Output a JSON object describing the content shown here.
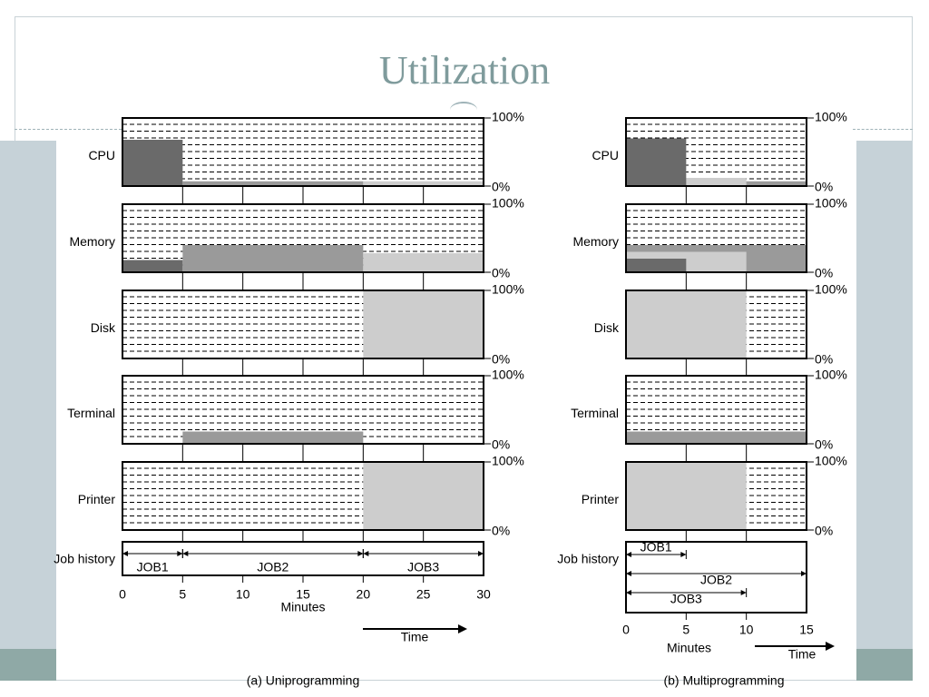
{
  "slide": {
    "title": "Utilization",
    "colors": {
      "title": "#7f9b9c",
      "accent_bar": "#c6d2d8",
      "accent_foot": "#8fa9a6"
    }
  },
  "chart_data": [
    {
      "type": "area",
      "caption": "(a) Uniprogramming",
      "x_label": "Minutes",
      "time_label": "Time",
      "x_ticks": [
        0,
        5,
        10,
        15,
        20,
        25,
        30
      ],
      "xlim": [
        0,
        30
      ],
      "ylim_percent": [
        0,
        100
      ],
      "y_tick_labels": [
        "100%",
        "0%"
      ],
      "grid": "dashed horizontal",
      "resources": [
        {
          "name": "CPU",
          "segments": [
            {
              "job": "JOB1",
              "start": 0,
              "end": 5,
              "level": 68
            },
            {
              "job": "JOB2",
              "start": 5,
              "end": 20,
              "level": 7
            },
            {
              "job": "JOB3",
              "start": 20,
              "end": 30,
              "level": 7
            }
          ]
        },
        {
          "name": "Memory",
          "segments": [
            {
              "job": "JOB1",
              "start": 0,
              "end": 5,
              "level": 18
            },
            {
              "job": "JOB2",
              "start": 5,
              "end": 20,
              "level": 40
            },
            {
              "job": "JOB3",
              "start": 20,
              "end": 30,
              "level": 28
            }
          ]
        },
        {
          "name": "Disk",
          "segments": [
            {
              "job": "JOB3",
              "start": 20,
              "end": 30,
              "level": 100
            }
          ]
        },
        {
          "name": "Terminal",
          "segments": [
            {
              "job": "JOB2",
              "start": 5,
              "end": 20,
              "level": 18
            }
          ]
        },
        {
          "name": "Printer",
          "segments": [
            {
              "job": "JOB3",
              "start": 20,
              "end": 30,
              "level": 100
            }
          ]
        }
      ],
      "job_history_label": "Job history",
      "job_history": [
        {
          "job": "JOB1",
          "start": 0,
          "end": 5
        },
        {
          "job": "JOB2",
          "start": 5,
          "end": 20
        },
        {
          "job": "JOB3",
          "start": 20,
          "end": 30
        }
      ]
    },
    {
      "type": "area",
      "caption": "(b) Multiprogramming",
      "x_label": "Minutes",
      "time_label": "Time",
      "x_ticks": [
        0,
        5,
        10,
        15
      ],
      "xlim": [
        0,
        15
      ],
      "ylim_percent": [
        0,
        100
      ],
      "y_tick_labels": [
        "100%",
        "0%"
      ],
      "grid": "dashed horizontal",
      "resources": [
        {
          "name": "CPU",
          "segments": [
            {
              "job": "JOB2",
              "start": 0,
              "end": 15,
              "level": 7
            },
            {
              "job": "JOB3",
              "start": 0,
              "end": 10,
              "level": 12
            },
            {
              "job": "JOB1",
              "start": 0,
              "end": 5,
              "level": 70
            }
          ]
        },
        {
          "name": "Memory",
          "segments": [
            {
              "job": "JOB2",
              "start": 0,
              "end": 15,
              "level": 40
            },
            {
              "job": "JOB3",
              "start": 0,
              "end": 10,
              "level": 30
            },
            {
              "job": "JOB1",
              "start": 0,
              "end": 5,
              "level": 20
            }
          ]
        },
        {
          "name": "Disk",
          "segments": [
            {
              "job": "JOB3",
              "start": 0,
              "end": 10,
              "level": 100
            }
          ]
        },
        {
          "name": "Terminal",
          "segments": [
            {
              "job": "JOB2",
              "start": 0,
              "end": 15,
              "level": 18
            }
          ]
        },
        {
          "name": "Printer",
          "segments": [
            {
              "job": "JOB3",
              "start": 0,
              "end": 10,
              "level": 100
            }
          ]
        }
      ],
      "job_history_label": "Job history",
      "job_history": [
        {
          "job": "JOB1",
          "start": 0,
          "end": 5
        },
        {
          "job": "JOB2",
          "start": 0,
          "end": 15
        },
        {
          "job": "JOB3",
          "start": 0,
          "end": 10
        }
      ]
    }
  ]
}
